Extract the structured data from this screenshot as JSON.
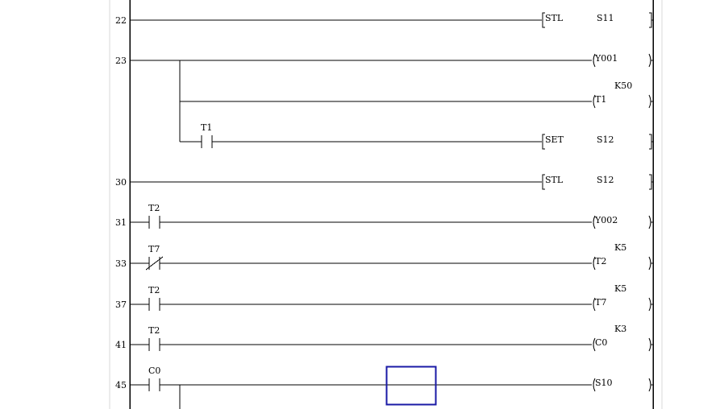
{
  "editor": {
    "cursor_color": "#1a1aa6",
    "rungs": [
      {
        "step": "22",
        "branches": [
          {
            "contact": null,
            "output": {
              "kind": "instruction",
              "op": "STL",
              "operand": "S11"
            }
          }
        ]
      },
      {
        "step": "23",
        "branches": [
          {
            "contact": null,
            "output": {
              "kind": "coil",
              "device": "Y001"
            }
          },
          {
            "contact": null,
            "output": {
              "kind": "coil",
              "device": "T1",
              "setting": "K50"
            }
          },
          {
            "contact": {
              "device": "T1",
              "type": "NO"
            },
            "output": {
              "kind": "instruction",
              "op": "SET",
              "operand": "S12"
            }
          }
        ]
      },
      {
        "step": "30",
        "branches": [
          {
            "contact": null,
            "output": {
              "kind": "instruction",
              "op": "STL",
              "operand": "S12"
            }
          }
        ]
      },
      {
        "step": "31",
        "branches": [
          {
            "contact": {
              "device": "T2",
              "type": "NO"
            },
            "output": {
              "kind": "coil",
              "device": "Y002"
            }
          }
        ]
      },
      {
        "step": "33",
        "branches": [
          {
            "contact": {
              "device": "T7",
              "type": "NC"
            },
            "output": {
              "kind": "coil",
              "device": "T2",
              "setting": "K5"
            }
          }
        ]
      },
      {
        "step": "37",
        "branches": [
          {
            "contact": {
              "device": "T2",
              "type": "NO"
            },
            "output": {
              "kind": "coil",
              "device": "T7",
              "setting": "K5"
            }
          }
        ]
      },
      {
        "step": "41",
        "branches": [
          {
            "contact": {
              "device": "T2",
              "type": "NO"
            },
            "output": {
              "kind": "coil",
              "device": "C0",
              "setting": "K3"
            }
          }
        ]
      },
      {
        "step": "45",
        "branches": [
          {
            "contact": {
              "device": "C0",
              "type": "NO"
            },
            "output": {
              "kind": "coil",
              "device": "S10"
            }
          }
        ]
      }
    ]
  }
}
